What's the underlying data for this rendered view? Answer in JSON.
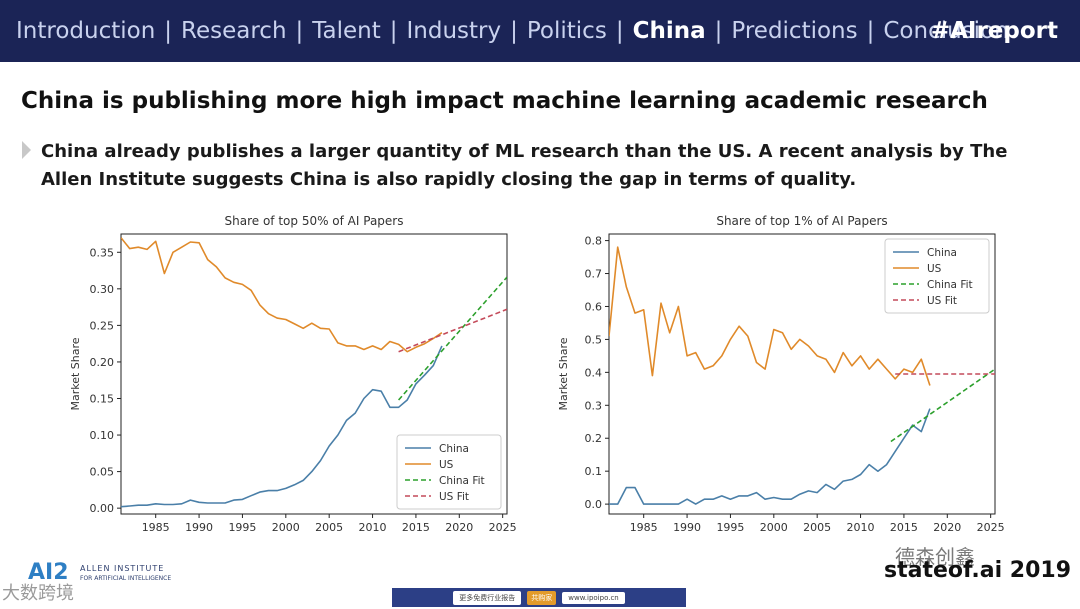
{
  "nav": {
    "items": [
      "Introduction",
      "Research",
      "Talent",
      "Industry",
      "Politics",
      "China",
      "Predictions",
      "Conclusion"
    ],
    "active": "China",
    "separator": "|",
    "hashtag": "#AIreport"
  },
  "slide": {
    "title": "China is publishing more high impact machine learning academic research",
    "subtitle": "China already publishes a larger quantity of ML research than the US. A recent analysis by The Allen Institute suggests China is also rapidly closing the gap in terms of quality."
  },
  "chart_data": [
    {
      "type": "line",
      "title": "Share of top 50% of AI Papers",
      "xlabel": "",
      "ylabel": "Market Share",
      "xlim": [
        1981,
        2025.5
      ],
      "ylim": [
        -0.008,
        0.375
      ],
      "xticks": [
        1985,
        1990,
        1995,
        2000,
        2005,
        2010,
        2015,
        2020,
        2025
      ],
      "yticks": [
        0.0,
        0.05,
        0.1,
        0.15,
        0.2,
        0.25,
        0.3,
        0.35
      ],
      "ytick_labels": [
        "0.00",
        "0.05",
        "0.10",
        "0.15",
        "0.20",
        "0.25",
        "0.30",
        "0.35"
      ],
      "legend_position": "bottom-right",
      "series": [
        {
          "name": "China",
          "color": "#4a7fa8",
          "style": "solid",
          "x": [
            1981,
            1982,
            1983,
            1984,
            1985,
            1986,
            1987,
            1988,
            1989,
            1990,
            1991,
            1992,
            1993,
            1994,
            1995,
            1996,
            1997,
            1998,
            1999,
            2000,
            2001,
            2002,
            2003,
            2004,
            2005,
            2006,
            2007,
            2008,
            2009,
            2010,
            2011,
            2012,
            2013,
            2014,
            2015,
            2016,
            2017,
            2018
          ],
          "y": [
            0.002,
            0.003,
            0.004,
            0.004,
            0.006,
            0.005,
            0.005,
            0.006,
            0.011,
            0.008,
            0.007,
            0.007,
            0.007,
            0.011,
            0.012,
            0.017,
            0.022,
            0.024,
            0.024,
            0.027,
            0.032,
            0.038,
            0.05,
            0.065,
            0.085,
            0.1,
            0.12,
            0.13,
            0.15,
            0.162,
            0.16,
            0.138,
            0.138,
            0.148,
            0.17,
            0.182,
            0.195,
            0.222
          ]
        },
        {
          "name": "US",
          "color": "#e08a2a",
          "style": "solid",
          "x": [
            1981,
            1982,
            1983,
            1984,
            1985,
            1986,
            1987,
            1988,
            1989,
            1990,
            1991,
            1992,
            1993,
            1994,
            1995,
            1996,
            1997,
            1998,
            1999,
            2000,
            2001,
            2002,
            2003,
            2004,
            2005,
            2006,
            2007,
            2008,
            2009,
            2010,
            2011,
            2012,
            2013,
            2014,
            2015,
            2016,
            2017,
            2018
          ],
          "y": [
            0.37,
            0.355,
            0.357,
            0.354,
            0.365,
            0.321,
            0.35,
            0.357,
            0.364,
            0.363,
            0.34,
            0.33,
            0.315,
            0.309,
            0.306,
            0.298,
            0.278,
            0.266,
            0.26,
            0.258,
            0.252,
            0.246,
            0.253,
            0.246,
            0.245,
            0.226,
            0.222,
            0.222,
            0.217,
            0.222,
            0.217,
            0.228,
            0.224,
            0.214,
            0.22,
            0.225,
            0.232,
            0.24
          ]
        },
        {
          "name": "China Fit",
          "color": "#2ca02c",
          "style": "dashed",
          "x": [
            2013,
            2025.5
          ],
          "y": [
            0.148,
            0.316
          ]
        },
        {
          "name": "US Fit",
          "color": "#c44a5a",
          "style": "dashed",
          "x": [
            2013,
            2025.5
          ],
          "y": [
            0.214,
            0.272
          ]
        }
      ]
    },
    {
      "type": "line",
      "title": "Share of top 1% of AI Papers",
      "xlabel": "",
      "ylabel": "Market Share",
      "xlim": [
        1981,
        2025.5
      ],
      "ylim": [
        -0.03,
        0.82
      ],
      "xticks": [
        1985,
        1990,
        1995,
        2000,
        2005,
        2010,
        2015,
        2020,
        2025
      ],
      "yticks": [
        0.0,
        0.1,
        0.2,
        0.3,
        0.4,
        0.5,
        0.6,
        0.7,
        0.8
      ],
      "ytick_labels": [
        "0.0",
        "0.1",
        "0.2",
        "0.3",
        "0.4",
        "0.5",
        "0.6",
        "0.7",
        "0.8"
      ],
      "legend_position": "top-right",
      "series": [
        {
          "name": "China",
          "color": "#4a7fa8",
          "style": "solid",
          "x": [
            1981,
            1982,
            1983,
            1984,
            1985,
            1986,
            1987,
            1988,
            1989,
            1990,
            1991,
            1992,
            1993,
            1994,
            1995,
            1996,
            1997,
            1998,
            1999,
            2000,
            2001,
            2002,
            2003,
            2004,
            2005,
            2006,
            2007,
            2008,
            2009,
            2010,
            2011,
            2012,
            2013,
            2014,
            2015,
            2016,
            2017,
            2018
          ],
          "y": [
            0.0,
            0.0,
            0.05,
            0.05,
            0.0,
            0.0,
            0.0,
            0.0,
            0.0,
            0.015,
            0.0,
            0.015,
            0.015,
            0.025,
            0.015,
            0.025,
            0.025,
            0.035,
            0.015,
            0.02,
            0.015,
            0.015,
            0.03,
            0.04,
            0.035,
            0.06,
            0.045,
            0.07,
            0.075,
            0.09,
            0.12,
            0.1,
            0.12,
            0.16,
            0.2,
            0.24,
            0.22,
            0.29
          ]
        },
        {
          "name": "US",
          "color": "#e08a2a",
          "style": "solid",
          "x": [
            1981,
            1982,
            1983,
            1984,
            1985,
            1986,
            1987,
            1988,
            1989,
            1990,
            1991,
            1992,
            1993,
            1994,
            1995,
            1996,
            1997,
            1998,
            1999,
            2000,
            2001,
            2002,
            2003,
            2004,
            2005,
            2006,
            2007,
            2008,
            2009,
            2010,
            2011,
            2012,
            2013,
            2014,
            2015,
            2016,
            2017,
            2018
          ],
          "y": [
            0.51,
            0.78,
            0.66,
            0.58,
            0.59,
            0.39,
            0.61,
            0.52,
            0.6,
            0.45,
            0.46,
            0.41,
            0.42,
            0.45,
            0.5,
            0.54,
            0.51,
            0.43,
            0.41,
            0.53,
            0.52,
            0.47,
            0.5,
            0.48,
            0.45,
            0.44,
            0.4,
            0.46,
            0.42,
            0.45,
            0.41,
            0.44,
            0.41,
            0.38,
            0.41,
            0.4,
            0.44,
            0.36
          ]
        },
        {
          "name": "China Fit",
          "color": "#2ca02c",
          "style": "dashed",
          "x": [
            2013.5,
            2025.5
          ],
          "y": [
            0.19,
            0.41
          ]
        },
        {
          "name": "US Fit",
          "color": "#c44a5a",
          "style": "dashed",
          "x": [
            2014,
            2025.5
          ],
          "y": [
            0.395,
            0.395
          ]
        }
      ]
    }
  ],
  "footer": {
    "logo_mark": "AI2",
    "logo_name": "ALLEN INSTITUTE",
    "logo_sub": "FOR ARTIFICIAL INTELLIGENCE",
    "watermark_left": "大数跨境",
    "watermark_right": "德森创鑫",
    "stateof": "stateof.ai 2019",
    "banner_text": "更多免费行业报告",
    "banner_button": "共购家",
    "banner_url": "www.ipoipo.cn"
  }
}
